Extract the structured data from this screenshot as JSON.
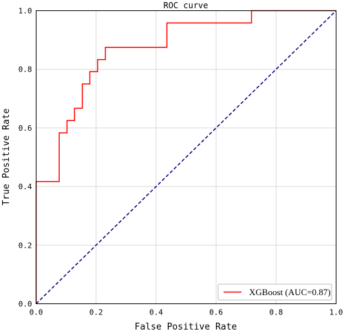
{
  "chart_data": {
    "type": "line",
    "title": "ROC curve",
    "xlabel": "False Positive Rate",
    "ylabel": "True Positive Rate",
    "xlim": [
      0.0,
      1.0
    ],
    "ylim": [
      0.0,
      1.0
    ],
    "x_ticks": [
      0.0,
      0.2,
      0.4,
      0.6,
      0.8,
      1.0
    ],
    "y_ticks": [
      0.0,
      0.2,
      0.4,
      0.6,
      0.8,
      1.0
    ],
    "x_tick_labels": [
      "0.0",
      "0.2",
      "0.4",
      "0.6",
      "0.8",
      "1.0"
    ],
    "y_tick_labels": [
      "0.0",
      "0.2",
      "0.4",
      "0.6",
      "0.8",
      "1.0"
    ],
    "grid": true,
    "legend_position": "lower-right",
    "series": [
      {
        "name": "XGBoost (AUC=0.87)",
        "color": "#ff0000",
        "style": "solid",
        "x": [
          0.0,
          0.0,
          0.077,
          0.077,
          0.103,
          0.103,
          0.128,
          0.128,
          0.154,
          0.154,
          0.179,
          0.179,
          0.205,
          0.205,
          0.231,
          0.231,
          0.436,
          0.436,
          0.718,
          0.718,
          1.0
        ],
        "y": [
          0.0,
          0.417,
          0.417,
          0.583,
          0.583,
          0.625,
          0.625,
          0.667,
          0.667,
          0.75,
          0.75,
          0.792,
          0.792,
          0.833,
          0.833,
          0.875,
          0.875,
          0.958,
          0.958,
          1.0,
          1.0
        ]
      },
      {
        "name": "",
        "color": "#000080",
        "style": "dashed",
        "x": [
          0.0,
          1.0
        ],
        "y": [
          0.0,
          1.0
        ]
      }
    ]
  }
}
